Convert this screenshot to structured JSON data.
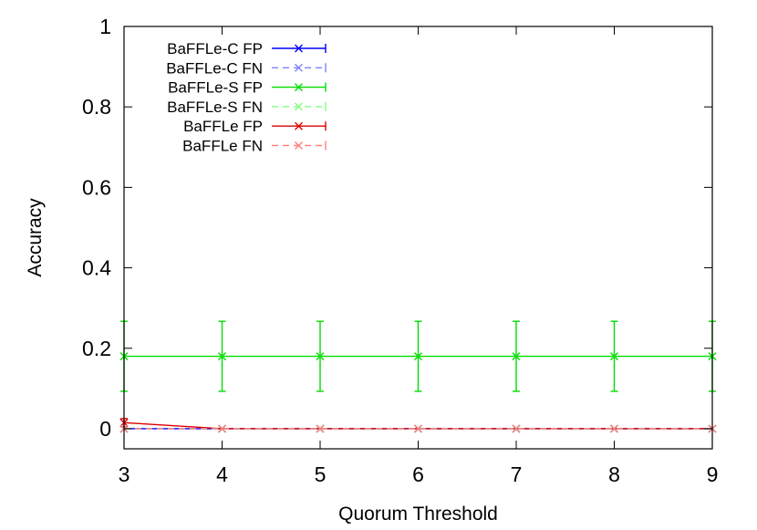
{
  "chart_data": {
    "type": "line",
    "title": "",
    "xlabel": "Quorum Threshold",
    "ylabel": "Accuracy",
    "xlim": [
      3,
      9
    ],
    "ylim": [
      -0.05,
      1
    ],
    "x_ticks": [
      "3",
      "4",
      "5",
      "6",
      "7",
      "8",
      "9"
    ],
    "y_ticks": [
      "0",
      "0.2",
      "0.4",
      "0.6",
      "0.8",
      "1"
    ],
    "grid": false,
    "legend_position": "top-left",
    "x": [
      3,
      4,
      5,
      6,
      7,
      8,
      9
    ],
    "series": [
      {
        "name": "BaFFLe-C FP",
        "color": "#0000ff",
        "dash": "solid",
        "values": [
          0,
          0,
          0,
          0,
          0,
          0,
          0
        ],
        "error": [
          0,
          0,
          0,
          0,
          0,
          0,
          0
        ]
      },
      {
        "name": "BaFFLe-C FN",
        "color": "#8080ff",
        "dash": "dashed",
        "values": [
          0,
          0,
          0,
          0,
          0,
          0,
          0
        ],
        "error": [
          0,
          0,
          0,
          0,
          0,
          0,
          0
        ]
      },
      {
        "name": "BaFFLe-S FP",
        "color": "#00dd00",
        "dash": "solid",
        "values": [
          0.18,
          0.18,
          0.18,
          0.18,
          0.18,
          0.18,
          0.18
        ],
        "error": [
          0.087,
          0.087,
          0.087,
          0.087,
          0.087,
          0.087,
          0.087
        ]
      },
      {
        "name": "BaFFLe-S FN",
        "color": "#80ff80",
        "dash": "dashed",
        "values": [
          0,
          0,
          0,
          0,
          0,
          0,
          0
        ],
        "error": [
          0,
          0,
          0,
          0,
          0,
          0,
          0
        ]
      },
      {
        "name": "BaFFLe FP",
        "color": "#dd0000",
        "dash": "solid",
        "values": [
          0.015,
          0,
          0,
          0,
          0,
          0,
          0
        ],
        "error": [
          0.01,
          0,
          0,
          0,
          0,
          0,
          0
        ]
      },
      {
        "name": "BaFFLe FN",
        "color": "#ff8080",
        "dash": "dashed",
        "values": [
          0,
          0,
          0,
          0,
          0,
          0,
          0
        ],
        "error": [
          0,
          0,
          0,
          0,
          0,
          0,
          0
        ]
      }
    ]
  }
}
